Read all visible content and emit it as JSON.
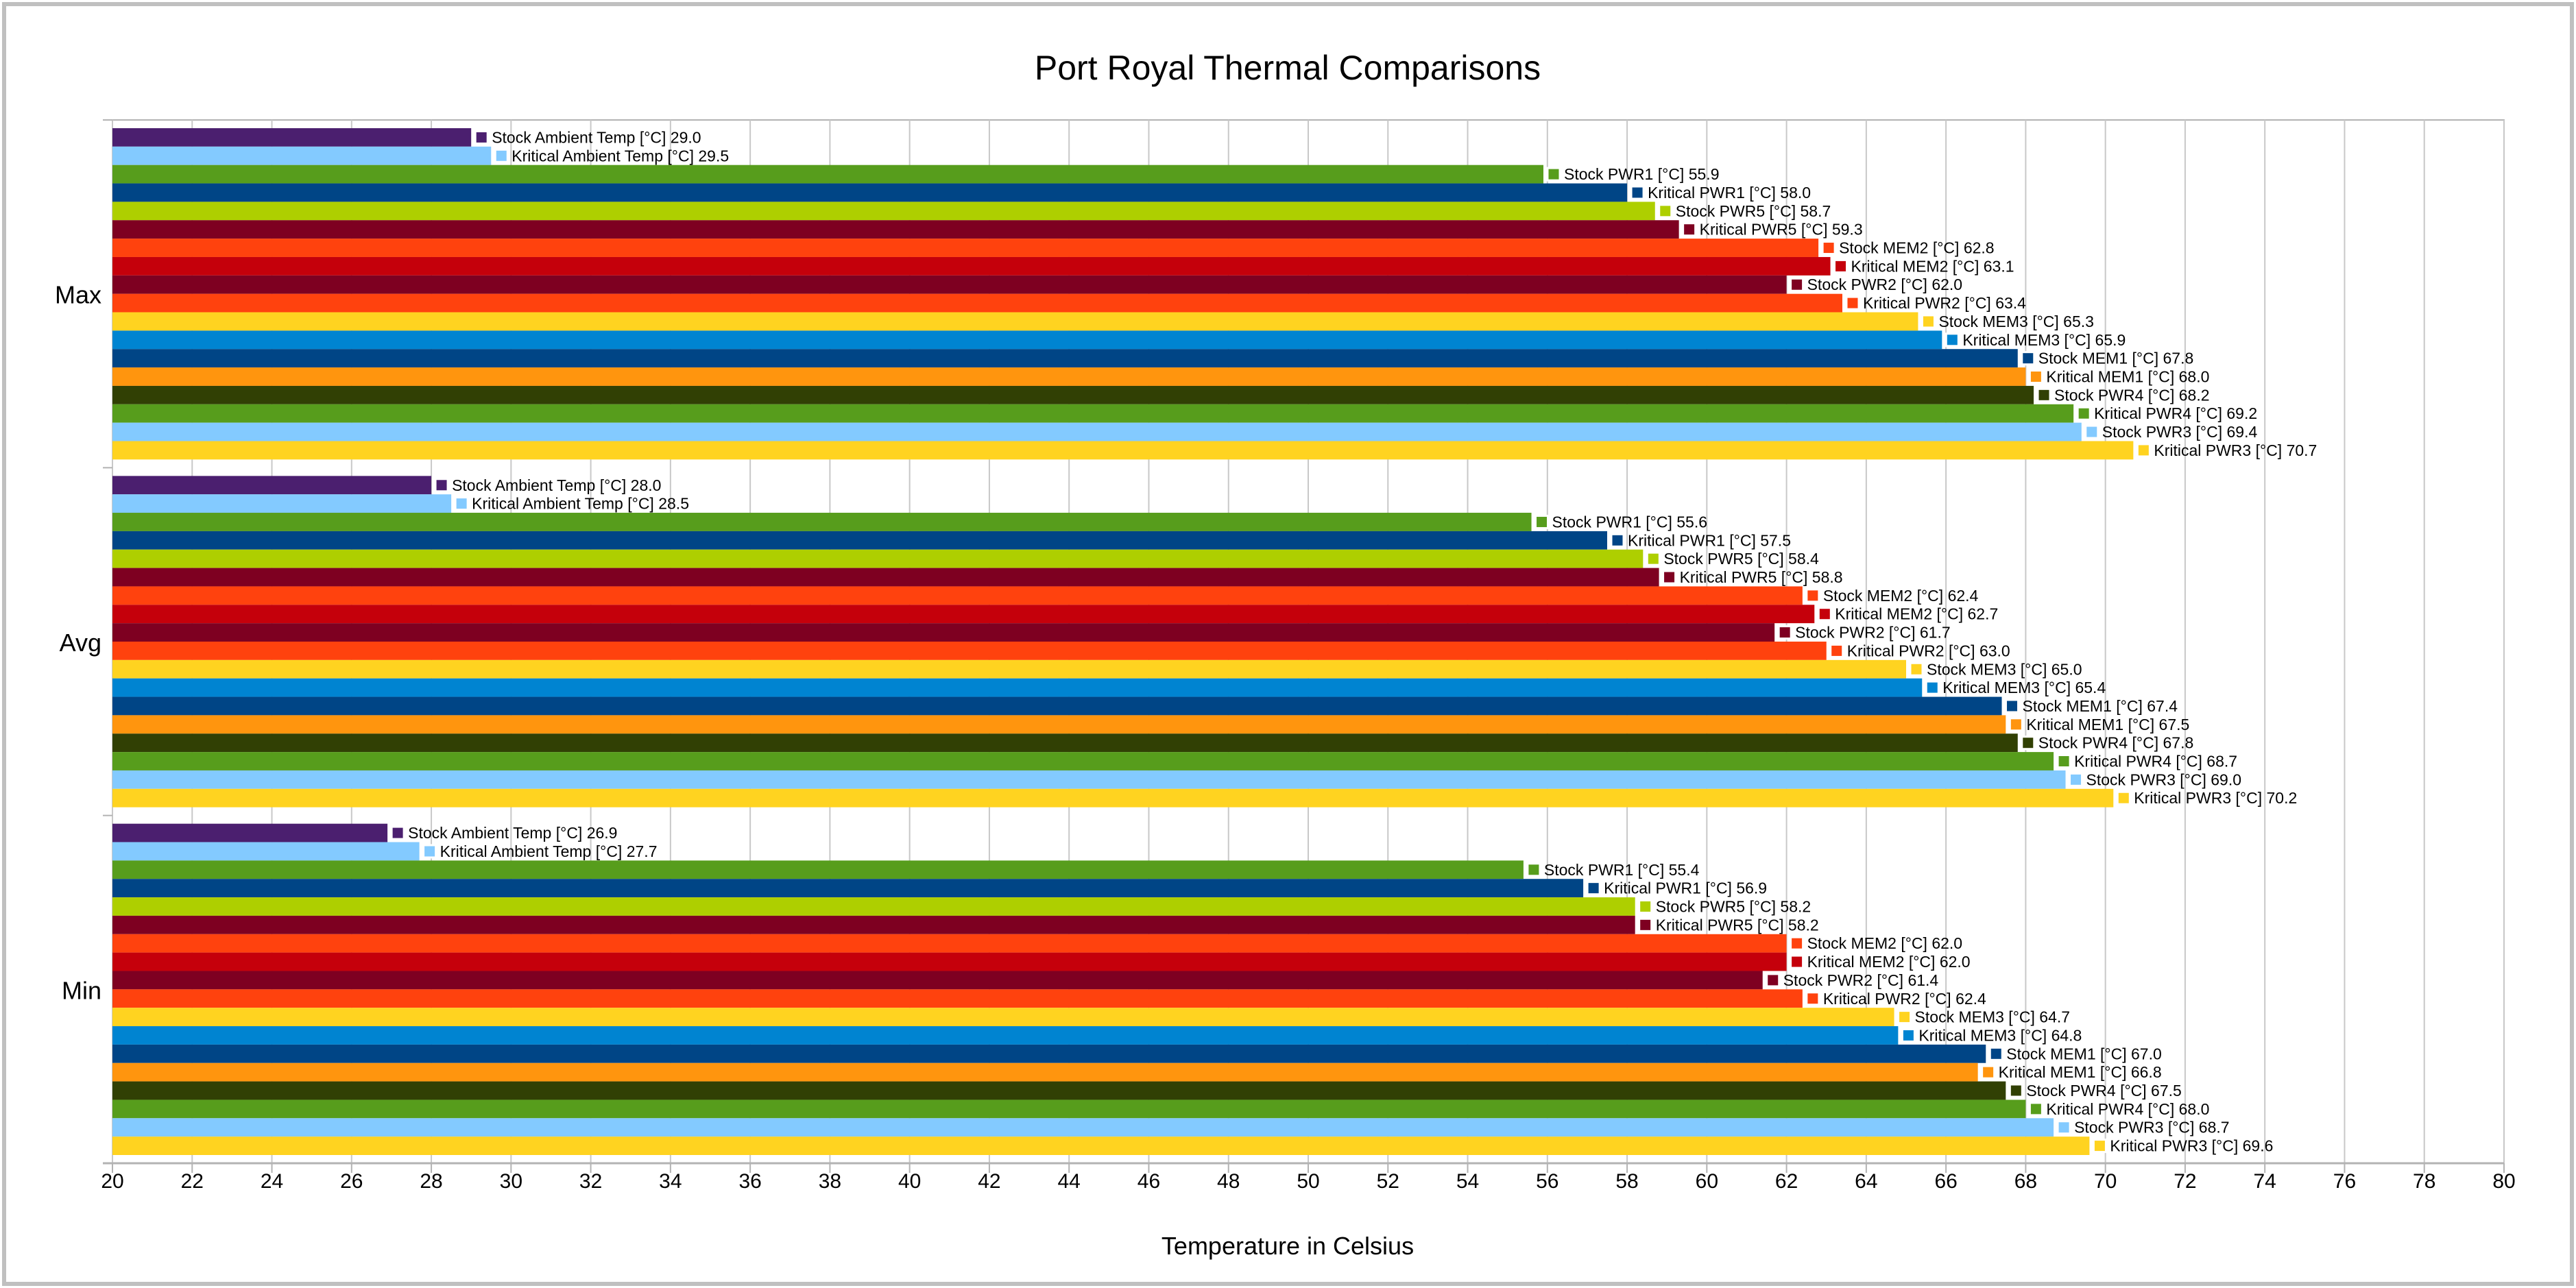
{
  "chart_data": {
    "type": "bar",
    "orientation": "horizontal",
    "title": "Port Royal Thermal Comparisons",
    "xlabel": "Temperature in Celsius",
    "ylabel": "",
    "xlim": [
      20,
      80
    ],
    "xticks": [
      20,
      22,
      24,
      26,
      28,
      30,
      32,
      34,
      36,
      38,
      40,
      42,
      44,
      46,
      48,
      50,
      52,
      54,
      56,
      58,
      60,
      62,
      64,
      66,
      68,
      70,
      72,
      74,
      76,
      78,
      80
    ],
    "grid": true,
    "legend": "none (series names shown in data labels)",
    "categories": [
      "Max",
      "Avg",
      "Min"
    ],
    "series": [
      {
        "name": "Stock Ambient Temp [°C]",
        "color": "#4b1f6f",
        "values": [
          29.0,
          28.0,
          26.9
        ]
      },
      {
        "name": "Kritical Ambient Temp [°C]",
        "color": "#83caff",
        "values": [
          29.5,
          28.5,
          27.7
        ]
      },
      {
        "name": "Stock PWR1 [°C]",
        "color": "#579d1c",
        "values": [
          55.9,
          55.6,
          55.4
        ]
      },
      {
        "name": "Kritical PWR1 [°C]",
        "color": "#004586",
        "values": [
          58.0,
          57.5,
          56.9
        ]
      },
      {
        "name": "Stock PWR5 [°C]",
        "color": "#aecf00",
        "values": [
          58.7,
          58.4,
          58.2
        ]
      },
      {
        "name": "Kritical PWR5 [°C]",
        "color": "#7e0021",
        "values": [
          59.3,
          58.8,
          58.2
        ]
      },
      {
        "name": "Stock MEM2 [°C]",
        "color": "#ff420e",
        "values": [
          62.8,
          62.4,
          62.0
        ]
      },
      {
        "name": "Kritical MEM2 [°C]",
        "color": "#c5000b",
        "values": [
          63.1,
          62.7,
          62.0
        ]
      },
      {
        "name": "Stock PWR2 [°C]",
        "color": "#7e0021",
        "values": [
          62.0,
          61.7,
          61.4
        ]
      },
      {
        "name": "Kritical PWR2 [°C]",
        "color": "#ff420e",
        "values": [
          63.4,
          63.0,
          62.4
        ]
      },
      {
        "name": "Stock MEM3 [°C]",
        "color": "#ffd320",
        "values": [
          65.3,
          65.0,
          64.7
        ]
      },
      {
        "name": "Kritical MEM3 [°C]",
        "color": "#0084d1",
        "values": [
          65.9,
          65.4,
          64.8
        ]
      },
      {
        "name": "Stock MEM1 [°C]",
        "color": "#004586",
        "values": [
          67.8,
          67.4,
          67.0
        ]
      },
      {
        "name": "Kritical MEM1 [°C]",
        "color": "#ff950e",
        "values": [
          68.0,
          67.5,
          66.8
        ]
      },
      {
        "name": "Stock PWR4 [°C]",
        "color": "#314004",
        "values": [
          68.2,
          67.8,
          67.5
        ]
      },
      {
        "name": "Kritical PWR4 [°C]",
        "color": "#579d1c",
        "values": [
          69.2,
          68.7,
          68.0
        ]
      },
      {
        "name": "Stock PWR3 [°C]",
        "color": "#83caff",
        "values": [
          69.4,
          69.0,
          68.7
        ]
      },
      {
        "name": "Kritical PWR3 [°C]",
        "color": "#ffd320",
        "values": [
          70.7,
          70.2,
          69.6
        ]
      }
    ]
  }
}
